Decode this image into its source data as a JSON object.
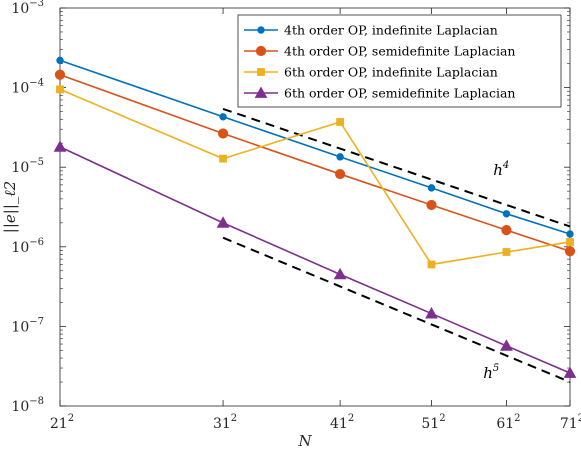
{
  "chart_data": {
    "type": "line",
    "title": "",
    "xlabel": "N",
    "ylabel": "||e||_ℓ2",
    "x_scale": "log",
    "y_scale": "log",
    "x_ticks": [
      {
        "value": 441,
        "base": "21",
        "exp": "2"
      },
      {
        "value": 961,
        "base": "31",
        "exp": "2"
      },
      {
        "value": 1681,
        "base": "41",
        "exp": "2"
      },
      {
        "value": 2601,
        "base": "51",
        "exp": "2"
      },
      {
        "value": 3721,
        "base": "61",
        "exp": "2"
      },
      {
        "value": 5041,
        "base": "71",
        "exp": "2"
      }
    ],
    "y_ticks": [
      {
        "value": 1e-08,
        "base": "10",
        "exp": "−8"
      },
      {
        "value": 1e-07,
        "base": "10",
        "exp": "−7"
      },
      {
        "value": 1e-06,
        "base": "10",
        "exp": "−6"
      },
      {
        "value": 1e-05,
        "base": "10",
        "exp": "−5"
      },
      {
        "value": 0.0001,
        "base": "10",
        "exp": "−4"
      },
      {
        "value": 0.001,
        "base": "10",
        "exp": "−3"
      }
    ],
    "xlim": [
      441,
      5041
    ],
    "ylim": [
      1e-08,
      0.001
    ],
    "grid": false,
    "legend_position": "top-right",
    "series": [
      {
        "name": "4th order OP, indefinite Laplacian",
        "color": "#0072BD",
        "marker": "circle-small",
        "x": [
          441,
          961,
          1681,
          2601,
          3721,
          5041
        ],
        "y": [
          0.00022,
          4.3e-05,
          1.35e-05,
          5.5e-06,
          2.6e-06,
          1.45e-06
        ]
      },
      {
        "name": "4th order OP, semidefinite Laplacian",
        "color": "#D95319",
        "marker": "circle",
        "x": [
          441,
          961,
          1681,
          2601,
          3721,
          5041
        ],
        "y": [
          0.000145,
          2.65e-05,
          8.2e-06,
          3.35e-06,
          1.62e-06,
          8.8e-07
        ]
      },
      {
        "name": "6th order OP, indefinite Laplacian",
        "color": "#EDB120",
        "marker": "square",
        "x": [
          441,
          961,
          1681,
          2601,
          3721,
          5041
        ],
        "y": [
          9.5e-05,
          1.28e-05,
          3.7e-05,
          6e-07,
          8.6e-07,
          1.15e-06
        ]
      },
      {
        "name": "6th order OP, semidefinite Laplacian",
        "color": "#7E2F8E",
        "marker": "triangle",
        "x": [
          441,
          961,
          1681,
          2601,
          3721,
          5041
        ],
        "y": [
          1.8e-05,
          2e-06,
          4.5e-07,
          1.45e-07,
          5.7e-08,
          2.6e-08
        ]
      }
    ],
    "reference_lines": [
      {
        "label": "h",
        "exp": "4",
        "x": [
          961,
          5041
        ],
        "y": [
          5.4e-05,
          1.8e-06
        ],
        "color": "#000000",
        "style": "dashed"
      },
      {
        "label": "h",
        "exp": "5",
        "x": [
          961,
          5041
        ],
        "y": [
          1.3e-06,
          2e-08
        ],
        "color": "#000000",
        "style": "dashed"
      }
    ]
  }
}
